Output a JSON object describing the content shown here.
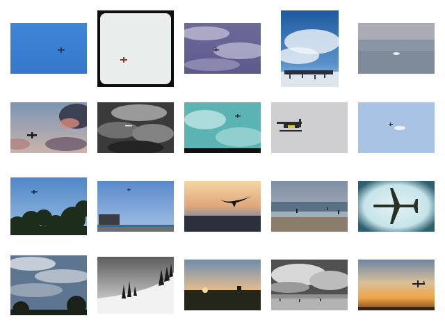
{
  "gallery": {
    "thumbnails": [
      {
        "subject": "airplane-blue-sky"
      },
      {
        "subject": "airplane-pale-sky-framed"
      },
      {
        "subject": "airplane-purple-clouds"
      },
      {
        "subject": "snowy-crowd-clouds"
      },
      {
        "subject": "airplane-over-grey-sea"
      },
      {
        "subject": "plane-sunset-clouds"
      },
      {
        "subject": "plane-grey-storm-clouds"
      },
      {
        "subject": "plane-teal-clouds"
      },
      {
        "subject": "seaplane-grey-sky"
      },
      {
        "subject": "planes-pale-blue-sky"
      },
      {
        "subject": "plane-over-trees"
      },
      {
        "subject": "plane-over-city-coast"
      },
      {
        "subject": "bird-at-sunset"
      },
      {
        "subject": "surfers-on-beach"
      },
      {
        "subject": "jet-vignette-blue"
      },
      {
        "subject": "cloudy-sky-trees"
      },
      {
        "subject": "snowy-hill-trees"
      },
      {
        "subject": "sunset-landscape-plane"
      },
      {
        "subject": "bw-beach-clouds"
      },
      {
        "subject": "plane-golden-sunset"
      }
    ]
  }
}
